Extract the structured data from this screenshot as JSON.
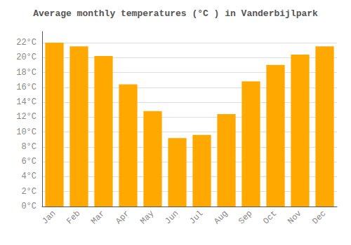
{
  "chart_data": {
    "type": "bar",
    "title": "Average monthly temperatures (°C ) in Vanderbijlpark",
    "categories": [
      "Jan",
      "Feb",
      "Mar",
      "Apr",
      "May",
      "Jun",
      "Jul",
      "Aug",
      "Sep",
      "Oct",
      "Nov",
      "Dec"
    ],
    "values": [
      22.0,
      21.5,
      20.2,
      16.4,
      12.8,
      9.2,
      9.6,
      12.4,
      16.8,
      19.0,
      20.4,
      21.5
    ],
    "color": "#FFA800",
    "ylim": [
      0,
      23.5
    ],
    "yticks": [
      {
        "value": 0,
        "label": "0°C"
      },
      {
        "value": 2,
        "label": "2°C"
      },
      {
        "value": 4,
        "label": "4°C"
      },
      {
        "value": 6,
        "label": "6°C"
      },
      {
        "value": 8,
        "label": "8°C"
      },
      {
        "value": 10,
        "label": "10°C"
      },
      {
        "value": 12,
        "label": "12°C"
      },
      {
        "value": 14,
        "label": "14°C"
      },
      {
        "value": 16,
        "label": "16°C"
      },
      {
        "value": 18,
        "label": "18°C"
      },
      {
        "value": 20,
        "label": "20°C"
      },
      {
        "value": 22,
        "label": "22°C"
      }
    ],
    "grid": true
  }
}
